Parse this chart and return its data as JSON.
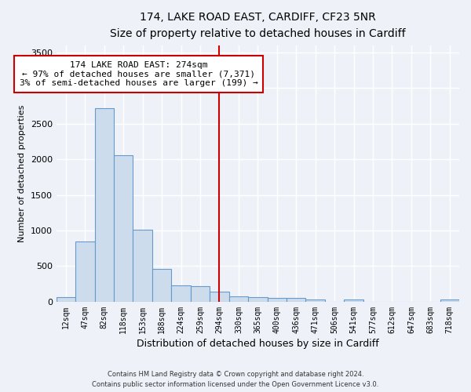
{
  "title1": "174, LAKE ROAD EAST, CARDIFF, CF23 5NR",
  "title2": "Size of property relative to detached houses in Cardiff",
  "xlabel": "Distribution of detached houses by size in Cardiff",
  "ylabel": "Number of detached properties",
  "bar_color": "#ccdcec",
  "bar_edge_color": "#6699cc",
  "bin_labels": [
    "12sqm",
    "47sqm",
    "82sqm",
    "118sqm",
    "153sqm",
    "188sqm",
    "224sqm",
    "259sqm",
    "294sqm",
    "330sqm",
    "365sqm",
    "400sqm",
    "436sqm",
    "471sqm",
    "506sqm",
    "541sqm",
    "577sqm",
    "612sqm",
    "647sqm",
    "683sqm",
    "718sqm"
  ],
  "bar_heights": [
    60,
    850,
    2720,
    2060,
    1010,
    460,
    230,
    220,
    140,
    75,
    60,
    55,
    50,
    35,
    0,
    30,
    0,
    0,
    0,
    0,
    30
  ],
  "ylim": [
    0,
    3600
  ],
  "yticks": [
    0,
    500,
    1000,
    1500,
    2000,
    2500,
    3000,
    3500
  ],
  "vline_x": 8.0,
  "annotation_text": "174 LAKE ROAD EAST: 274sqm\n← 97% of detached houses are smaller (7,371)\n3% of semi-detached houses are larger (199) →",
  "annotation_box_color": "#ffffff",
  "annotation_box_edge_color": "#cc0000",
  "vline_color": "#cc0000",
  "background_color": "#eef2f8",
  "grid_color": "#ffffff",
  "footer_line1": "Contains HM Land Registry data © Crown copyright and database right 2024.",
  "footer_line2": "Contains public sector information licensed under the Open Government Licence v3.0."
}
